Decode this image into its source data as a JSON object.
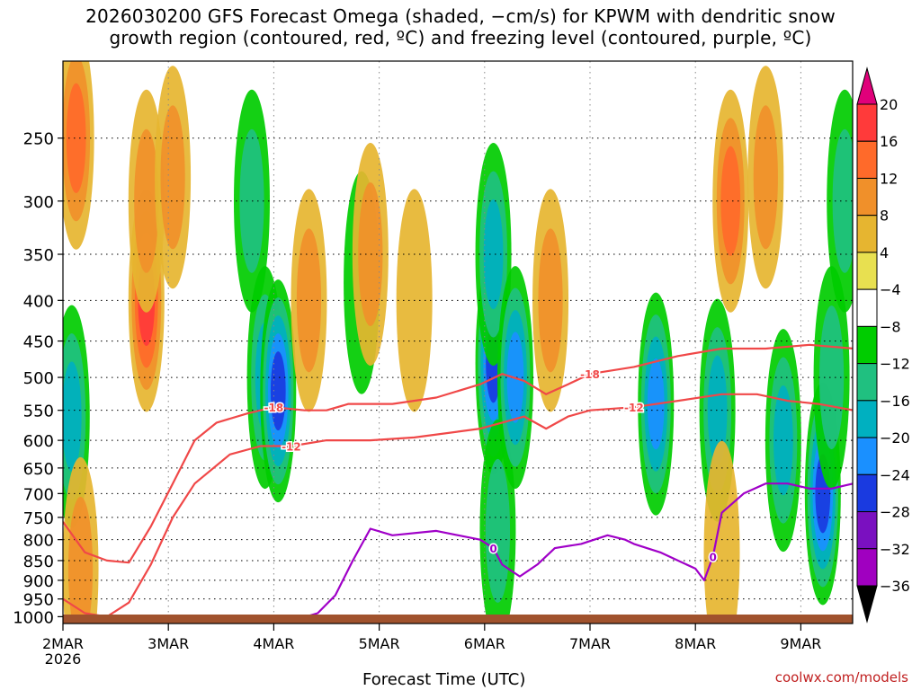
{
  "title_line1": "2026030200 GFS Forecast Omega (shaded, −cm/s) for KPWM with dendritic snow",
  "title_line2": "growth region (contoured, red, ºC) and freezing level (contoured, purple, ºC)",
  "credit": "coolwx.com/models",
  "chart_data": {
    "type": "heatmap",
    "title": "2026030200 GFS Forecast Omega (shaded, −cm/s) for KPWM with dendritic snow growth region (contoured, red, ºC) and freezing level (contoured, purple, ºC)",
    "xlabel": "Forecast Time (UTC)",
    "ylabel": "",
    "x_ticks": [
      "2MAR",
      "3MAR",
      "4MAR",
      "5MAR",
      "6MAR",
      "7MAR",
      "8MAR",
      "9MAR"
    ],
    "x_year": "2026",
    "xlim_hours": [
      0,
      180
    ],
    "y_ticks": [
      250,
      300,
      350,
      400,
      450,
      500,
      550,
      600,
      650,
      700,
      750,
      800,
      850,
      900,
      950,
      1000
    ],
    "ylim": [
      200,
      1020
    ],
    "y_scale": "log-pressure",
    "colorbar": {
      "labels": [
        "20",
        "16",
        "12",
        "8",
        "4",
        "−4",
        "−8",
        "−12",
        "−16",
        "−20",
        "−24",
        "−28",
        "−32",
        "−36"
      ],
      "colors": [
        "#e0007a",
        "#ff3a3a",
        "#ff6a2a",
        "#f0902a",
        "#e6b530",
        "#e8e050",
        "#ffffff",
        "#00cc00",
        "#20c080",
        "#00b0c0",
        "#1a90ff",
        "#1a3ae0",
        "#7a10c0",
        "#a000c0",
        "#aaaaaa",
        "#000000"
      ]
    },
    "omega_blobs": [
      {
        "t": 3,
        "p": 250,
        "v": 12
      },
      {
        "t": 2,
        "p": 560,
        "v": -14
      },
      {
        "t": 4,
        "p": 870,
        "v": 8
      },
      {
        "t": 19,
        "p": 400,
        "v": 16
      },
      {
        "t": 19,
        "p": 300,
        "v": 8
      },
      {
        "t": 25,
        "p": 280,
        "v": 8
      },
      {
        "t": 46,
        "p": 500,
        "v": -14
      },
      {
        "t": 49,
        "p": 520,
        "v": -20
      },
      {
        "t": 43,
        "p": 300,
        "v": -8
      },
      {
        "t": 56,
        "p": 400,
        "v": 8
      },
      {
        "t": 68,
        "p": 380,
        "v": -6
      },
      {
        "t": 70,
        "p": 350,
        "v": 8
      },
      {
        "t": 80,
        "p": 400,
        "v": 6
      },
      {
        "t": 98,
        "p": 480,
        "v": -20
      },
      {
        "t": 98,
        "p": 350,
        "v": -12
      },
      {
        "t": 99,
        "p": 780,
        "v": -10
      },
      {
        "t": 103,
        "p": 500,
        "v": -16
      },
      {
        "t": 111,
        "p": 400,
        "v": 8
      },
      {
        "t": 135,
        "p": 540,
        "v": -16
      },
      {
        "t": 152,
        "p": 300,
        "v": 12
      },
      {
        "t": 149,
        "p": 550,
        "v": -12
      },
      {
        "t": 160,
        "p": 280,
        "v": 8
      },
      {
        "t": 164,
        "p": 600,
        "v": -14
      },
      {
        "t": 173,
        "p": 700,
        "v": -22
      },
      {
        "t": 175,
        "p": 500,
        "v": -10
      },
      {
        "t": 178,
        "p": 300,
        "v": -8
      },
      {
        "t": 150,
        "p": 830,
        "v": 6
      }
    ],
    "contours": [
      {
        "name": "-18 C",
        "color": "#f04848",
        "label": "-18",
        "points": [
          [
            0,
            760
          ],
          [
            5,
            830
          ],
          [
            10,
            850
          ],
          [
            15,
            855
          ],
          [
            20,
            770
          ],
          [
            25,
            680
          ],
          [
            30,
            600
          ],
          [
            35,
            570
          ],
          [
            42,
            555
          ],
          [
            48,
            545
          ],
          [
            55,
            550
          ],
          [
            60,
            550
          ],
          [
            65,
            540
          ],
          [
            75,
            540
          ],
          [
            85,
            530
          ],
          [
            95,
            510
          ],
          [
            100,
            495
          ],
          [
            105,
            505
          ],
          [
            110,
            525
          ],
          [
            115,
            510
          ],
          [
            120,
            495
          ],
          [
            130,
            485
          ],
          [
            140,
            470
          ],
          [
            150,
            460
          ],
          [
            160,
            460
          ],
          [
            170,
            455
          ],
          [
            180,
            460
          ]
        ]
      },
      {
        "name": "-12 C",
        "color": "#f04848",
        "label": "-12",
        "points": [
          [
            0,
            950
          ],
          [
            5,
            990
          ],
          [
            10,
            1000
          ],
          [
            15,
            960
          ],
          [
            20,
            860
          ],
          [
            25,
            750
          ],
          [
            30,
            680
          ],
          [
            38,
            625
          ],
          [
            45,
            610
          ],
          [
            52,
            610
          ],
          [
            60,
            600
          ],
          [
            70,
            600
          ],
          [
            80,
            595
          ],
          [
            90,
            585
          ],
          [
            95,
            580
          ],
          [
            100,
            570
          ],
          [
            105,
            560
          ],
          [
            110,
            580
          ],
          [
            115,
            560
          ],
          [
            120,
            550
          ],
          [
            130,
            545
          ],
          [
            140,
            535
          ],
          [
            150,
            525
          ],
          [
            158,
            525
          ],
          [
            165,
            535
          ],
          [
            172,
            540
          ],
          [
            180,
            550
          ]
        ]
      },
      {
        "name": "0 C",
        "color": "#a000c8",
        "label": "0",
        "points": [
          [
            40,
            1000
          ],
          [
            50,
            1020
          ],
          [
            58,
            990
          ],
          [
            62,
            940
          ],
          [
            66,
            850
          ],
          [
            70,
            775
          ],
          [
            75,
            790
          ],
          [
            85,
            780
          ],
          [
            90,
            790
          ],
          [
            95,
            800
          ],
          [
            98,
            820
          ],
          [
            100,
            860
          ],
          [
            104,
            890
          ],
          [
            108,
            860
          ],
          [
            112,
            820
          ],
          [
            118,
            810
          ],
          [
            124,
            790
          ],
          [
            128,
            800
          ],
          [
            130,
            810
          ],
          [
            136,
            830
          ],
          [
            140,
            850
          ],
          [
            144,
            870
          ],
          [
            146,
            900
          ],
          [
            148,
            840
          ],
          [
            150,
            740
          ],
          [
            155,
            700
          ],
          [
            160,
            680
          ],
          [
            165,
            680
          ],
          [
            170,
            690
          ],
          [
            175,
            690
          ],
          [
            180,
            680
          ]
        ]
      }
    ]
  }
}
